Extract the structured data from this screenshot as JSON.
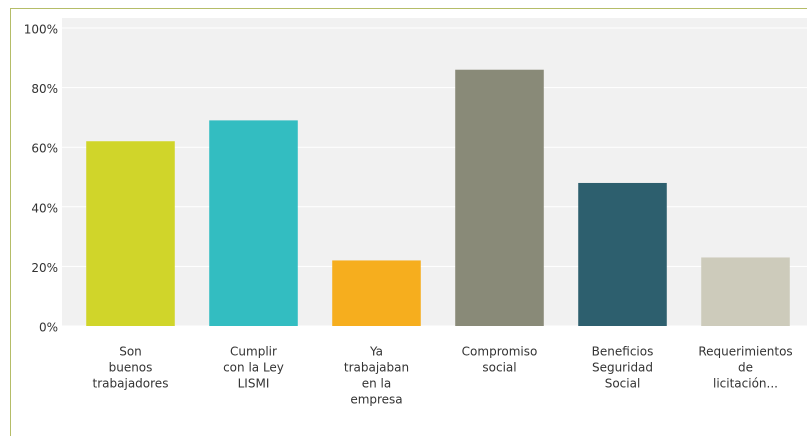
{
  "chart_data": {
    "type": "bar",
    "categories": [
      [
        "Son",
        "buenos",
        "trabajadores"
      ],
      [
        "Cumplir",
        "con la Ley",
        "LISMI"
      ],
      [
        "Ya",
        "trabajaban",
        "en la",
        "empresa"
      ],
      [
        "Compromiso",
        "social"
      ],
      [
        "Beneficios",
        "Seguridad",
        "Social"
      ],
      [
        "Requerimientos",
        "de",
        "licitación..."
      ]
    ],
    "values": [
      62,
      69,
      22,
      86,
      48,
      23
    ],
    "colors": [
      "#d0d52a",
      "#33bdc1",
      "#f6ae1e",
      "#898a78",
      "#2d5f6e",
      "#cdcbbb"
    ],
    "ylim": [
      0,
      100
    ],
    "yticks": [
      {
        "value": 0,
        "label": "0%"
      },
      {
        "value": 20,
        "label": "20%"
      },
      {
        "value": 40,
        "label": "40%"
      },
      {
        "value": 60,
        "label": "60%"
      },
      {
        "value": 80,
        "label": "80%"
      },
      {
        "value": 100,
        "label": "100%"
      }
    ],
    "grid": true
  }
}
